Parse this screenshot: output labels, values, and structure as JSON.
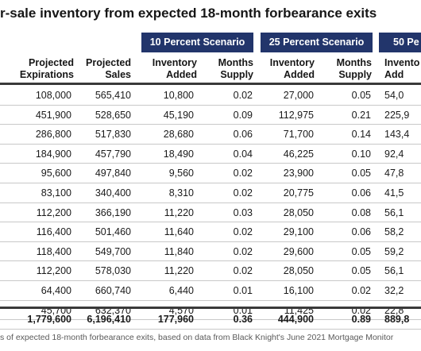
{
  "title": "r-sale inventory from expected 18-month forbearance exits",
  "scenario_labels": [
    "10 Percent Scenario",
    "25 Percent Scenario",
    "50 Pe"
  ],
  "columns": [
    {
      "key": "exp",
      "label_1": "Projected",
      "label_2": "Expirations"
    },
    {
      "key": "sales",
      "label_1": "Projected",
      "label_2": "Sales"
    },
    {
      "key": "inv10",
      "label_1": "Inventory",
      "label_2": "Added"
    },
    {
      "key": "ms10",
      "label_1": "Months",
      "label_2": "Supply"
    },
    {
      "key": "inv25",
      "label_1": "Inventory",
      "label_2": "Added"
    },
    {
      "key": "ms25",
      "label_1": "Months",
      "label_2": "Supply"
    },
    {
      "key": "inv50",
      "label_1": "Invento",
      "label_2": "Add"
    }
  ],
  "rows": [
    [
      "108,000",
      "565,410",
      "10,800",
      "0.02",
      "27,000",
      "0.05",
      "54,0"
    ],
    [
      "451,900",
      "528,650",
      "45,190",
      "0.09",
      "112,975",
      "0.21",
      "225,9"
    ],
    [
      "286,800",
      "517,830",
      "28,680",
      "0.06",
      "71,700",
      "0.14",
      "143,4"
    ],
    [
      "184,900",
      "457,790",
      "18,490",
      "0.04",
      "46,225",
      "0.10",
      "92,4"
    ],
    [
      "95,600",
      "497,840",
      "9,560",
      "0.02",
      "23,900",
      "0.05",
      "47,8"
    ],
    [
      "83,100",
      "340,400",
      "8,310",
      "0.02",
      "20,775",
      "0.06",
      "41,5"
    ],
    [
      "112,200",
      "366,190",
      "11,220",
      "0.03",
      "28,050",
      "0.08",
      "56,1"
    ],
    [
      "116,400",
      "501,460",
      "11,640",
      "0.02",
      "29,100",
      "0.06",
      "58,2"
    ],
    [
      "118,400",
      "549,700",
      "11,840",
      "0.02",
      "29,600",
      "0.05",
      "59,2"
    ],
    [
      "112,200",
      "578,030",
      "11,220",
      "0.02",
      "28,050",
      "0.05",
      "56,1"
    ],
    [
      "64,400",
      "660,740",
      "6,440",
      "0.01",
      "16,100",
      "0.02",
      "32,2"
    ],
    [
      "45,700",
      "632,370",
      "4,570",
      "0.01",
      "11,425",
      "0.02",
      "22,8"
    ]
  ],
  "totals": [
    "1,779,600",
    "6,196,410",
    "177,960",
    "0.36",
    "444,900",
    "0.89",
    "889,8"
  ],
  "footer": "s of expected 18-month forbearance exits, based on data from Black Knight's June 2021 Mortgage Monitor"
}
